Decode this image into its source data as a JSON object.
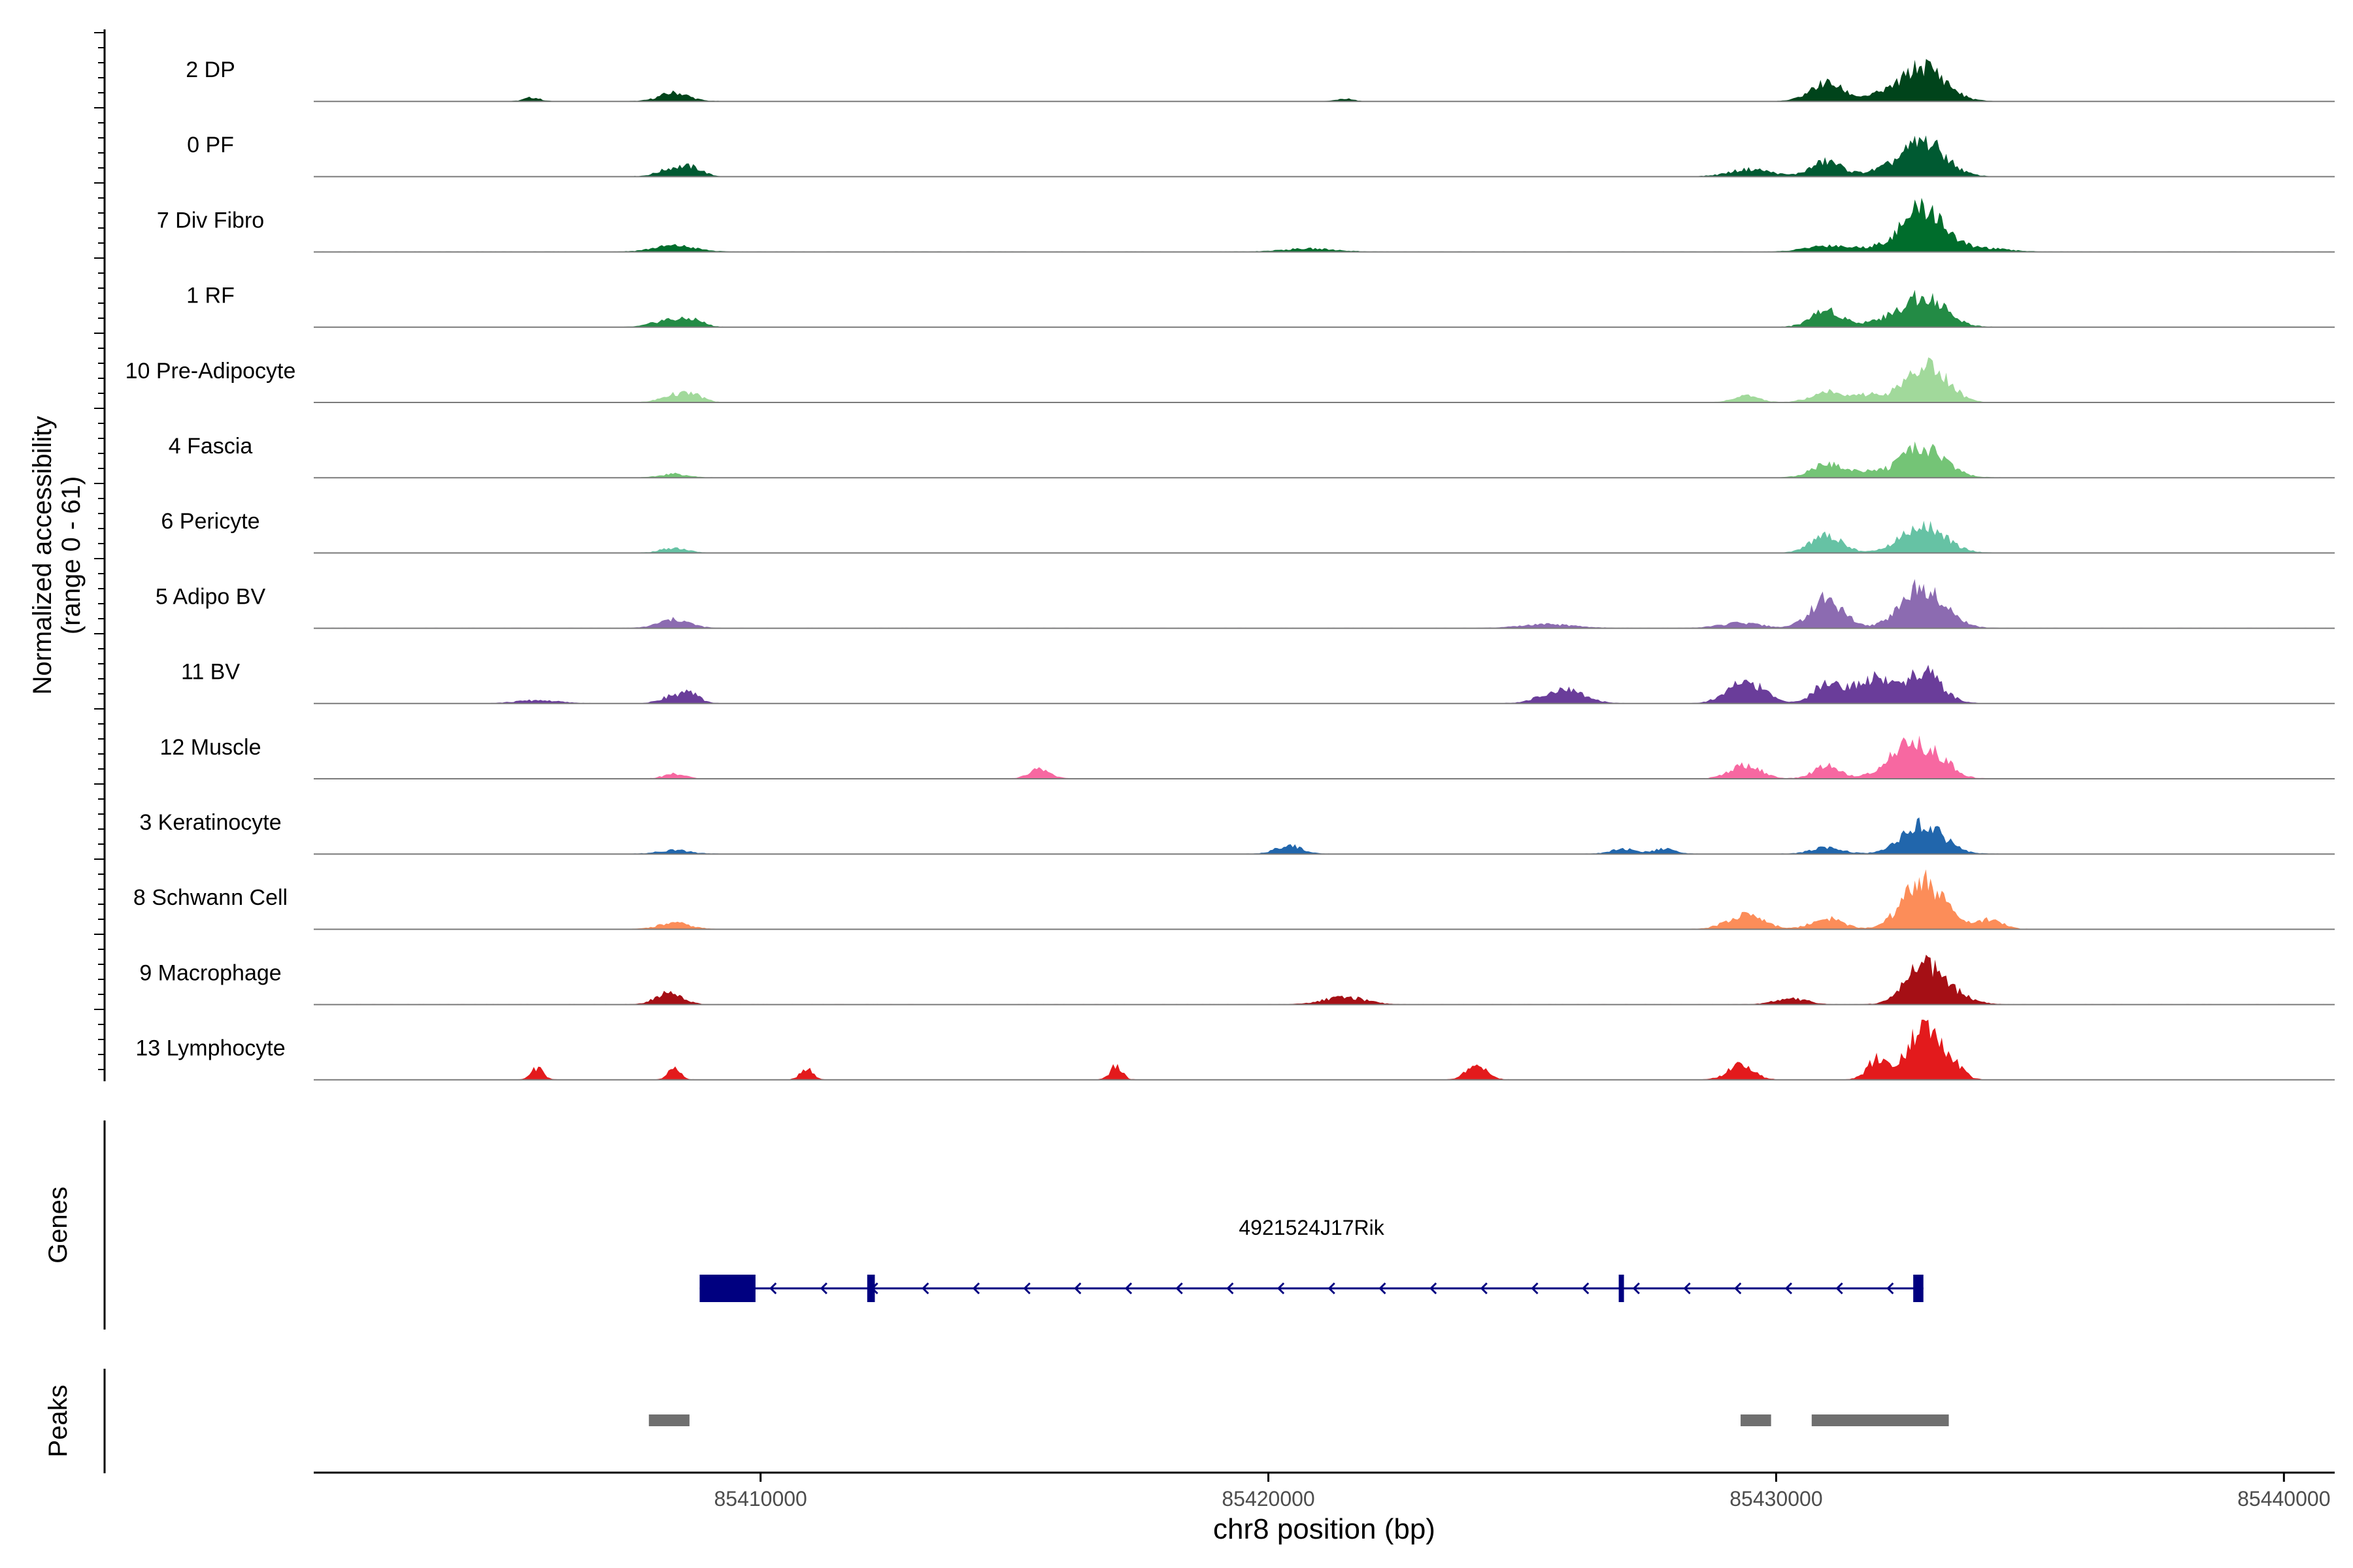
{
  "chart_data": {
    "type": "area",
    "title": "",
    "xlabel": "chr8 position (bp)",
    "ylabel_line1": "Normalized accessibility",
    "ylabel_line2": "(range 0 - 61)",
    "y_range": [
      0,
      61
    ],
    "xlim": [
      85401200,
      85441000
    ],
    "x_ticks": [
      85410000,
      85420000,
      85430000,
      85440000
    ],
    "x_tick_labels": [
      "85410000",
      "85420000",
      "85430000",
      "85440000"
    ],
    "tracks": [
      {
        "name": "2 DP",
        "color": "#00441b",
        "peaks": [
          [
            85405500,
            6,
            150
          ],
          [
            85408300,
            14,
            280
          ],
          [
            85421500,
            4,
            150
          ],
          [
            85431000,
            30,
            320
          ],
          [
            85432000,
            8,
            300
          ],
          [
            85432900,
            58,
            420
          ]
        ]
      },
      {
        "name": "0 PF",
        "color": "#005a32",
        "peaks": [
          [
            85408300,
            14,
            280
          ],
          [
            85408700,
            10,
            200
          ],
          [
            85429500,
            12,
            400
          ],
          [
            85431000,
            25,
            300
          ],
          [
            85432000,
            7,
            300
          ],
          [
            85432900,
            58,
            420
          ]
        ]
      },
      {
        "name": "7 Div Fibro",
        "color": "#006d2c",
        "peaks": [
          [
            85408300,
            10,
            400
          ],
          [
            85420800,
            5,
            500
          ],
          [
            85431000,
            10,
            400
          ],
          [
            85432000,
            6,
            400
          ],
          [
            85432900,
            72,
            400
          ],
          [
            85434000,
            6,
            500
          ]
        ]
      },
      {
        "name": "1 RF",
        "color": "#238b45",
        "peaks": [
          [
            85408200,
            12,
            300
          ],
          [
            85408700,
            10,
            200
          ],
          [
            85431000,
            28,
            300
          ],
          [
            85432000,
            8,
            300
          ],
          [
            85432900,
            52,
            420
          ]
        ]
      },
      {
        "name": "10 Pre-Adipocyte",
        "color": "#a1d99b",
        "peaks": [
          [
            85408300,
            12,
            250
          ],
          [
            85408700,
            10,
            200
          ],
          [
            85429400,
            10,
            250
          ],
          [
            85431000,
            18,
            300
          ],
          [
            85431800,
            12,
            250
          ],
          [
            85432900,
            55,
            400
          ],
          [
            85433300,
            12,
            250
          ]
        ]
      },
      {
        "name": "4 Fascia",
        "color": "#74c476",
        "peaks": [
          [
            85408300,
            6,
            250
          ],
          [
            85431000,
            22,
            300
          ],
          [
            85431800,
            10,
            300
          ],
          [
            85432900,
            50,
            420
          ]
        ]
      },
      {
        "name": "6 Pericyte",
        "color": "#66c2a4",
        "peaks": [
          [
            85408300,
            8,
            250
          ],
          [
            85431000,
            30,
            300
          ],
          [
            85432900,
            46,
            420
          ]
        ]
      },
      {
        "name": "5 Adipo BV",
        "color": "#8c6bb1",
        "peaks": [
          [
            85408300,
            14,
            300
          ],
          [
            85425500,
            6,
            500
          ],
          [
            85429300,
            8,
            400
          ],
          [
            85431000,
            48,
            320
          ],
          [
            85432900,
            70,
            420
          ]
        ]
      },
      {
        "name": "11 BV",
        "color": "#6a3d9a",
        "peaks": [
          [
            85405600,
            5,
            400
          ],
          [
            85408200,
            10,
            200
          ],
          [
            85408600,
            16,
            200
          ],
          [
            85425800,
            22,
            400
          ],
          [
            85429400,
            36,
            350
          ],
          [
            85431000,
            36,
            250
          ],
          [
            85431700,
            28,
            300
          ],
          [
            85432100,
            26,
            250
          ],
          [
            85432900,
            52,
            350
          ]
        ]
      },
      {
        "name": "12 Muscle",
        "color": "#f768a1",
        "peaks": [
          [
            85408300,
            8,
            200
          ],
          [
            85415500,
            16,
            200
          ],
          [
            85429400,
            22,
            300
          ],
          [
            85431000,
            22,
            250
          ],
          [
            85432700,
            58,
            450
          ],
          [
            85433300,
            12,
            200
          ]
        ]
      },
      {
        "name": "3 Keratinocyte",
        "color": "#2166ac",
        "peaks": [
          [
            85408300,
            6,
            300
          ],
          [
            85420400,
            14,
            250
          ],
          [
            85427000,
            8,
            250
          ],
          [
            85427800,
            8,
            200
          ],
          [
            85431000,
            10,
            300
          ],
          [
            85432900,
            48,
            400
          ]
        ]
      },
      {
        "name": "8 Schwann Cell",
        "color": "#fc8d59",
        "peaks": [
          [
            85408300,
            10,
            300
          ],
          [
            85429400,
            24,
            350
          ],
          [
            85431000,
            18,
            300
          ],
          [
            85432900,
            80,
            400
          ],
          [
            85434200,
            16,
            250
          ]
        ]
      },
      {
        "name": "9 Macrophage",
        "color": "#a50f15",
        "peaks": [
          [
            85408200,
            20,
            250
          ],
          [
            85421500,
            12,
            400
          ],
          [
            85430300,
            10,
            300
          ],
          [
            85432900,
            62,
            350
          ],
          [
            85433500,
            14,
            350
          ]
        ]
      },
      {
        "name": "13 Lymphocyte",
        "color": "#e31a1c",
        "peaks": [
          [
            85405600,
            20,
            120
          ],
          [
            85408300,
            18,
            120
          ],
          [
            85410900,
            18,
            120
          ],
          [
            85417000,
            22,
            120
          ],
          [
            85424100,
            26,
            200
          ],
          [
            85429300,
            24,
            250
          ],
          [
            85432000,
            34,
            200
          ],
          [
            85432900,
            92,
            300
          ],
          [
            85433500,
            20,
            200
          ]
        ]
      }
    ],
    "genes": {
      "label": "Genes",
      "gene_name": "4921524J17Rik",
      "color": "#000080",
      "start": 85408800,
      "end": 85432900,
      "strand": "-",
      "exons": [
        [
          85408800,
          85409900
        ],
        [
          85412100,
          85412250
        ],
        [
          85426900,
          85427000
        ],
        [
          85432700,
          85432900
        ]
      ]
    },
    "peaks_track": {
      "label": "Peaks",
      "color": "#6f6f6f",
      "regions": [
        [
          85407800,
          85408600
        ],
        [
          85429300,
          85429900
        ],
        [
          85430700,
          85433400
        ]
      ]
    }
  }
}
